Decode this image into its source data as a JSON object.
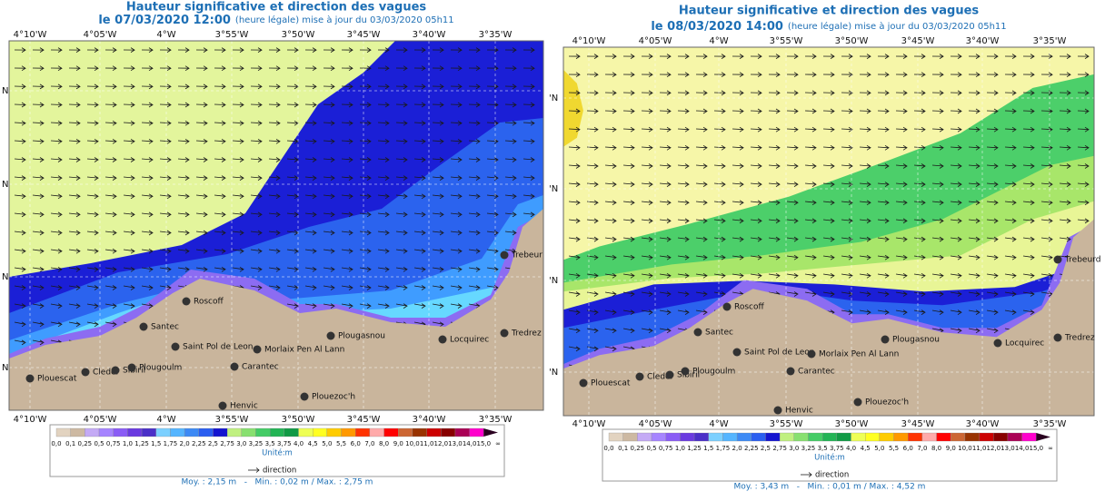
{
  "panels": [
    {
      "title": "Hauteur significative et direction des vagues",
      "date": "le 07/03/2020 12:00",
      "update": "(heure légale) mise à jour du 03/03/2020 05h11",
      "lon_labels": [
        "4°10'W",
        "4°05'W",
        "4°W",
        "3°55'W",
        "3°50'W",
        "3°45'W",
        "3°40'W",
        "3°35'W"
      ],
      "lat_labels": [
        "N",
        "N",
        "N",
        "N"
      ],
      "places": [
        "Roscoff",
        "Santec",
        "Saint Pol de Leon",
        "Morlaix Pen Al Lann",
        "Plougasnou",
        "Locquirec",
        "Trebeur",
        "Tredrez",
        "Plouescat",
        "Cleder",
        "Sibiril",
        "Plougoulm",
        "Carantec",
        "Plouezoc'h",
        "Henvic"
      ],
      "legend": {
        "labels": [
          "0,0",
          "0,1",
          "0,25",
          "0,5",
          "0,75",
          "1,0",
          "1,25",
          "1,5",
          "1,75",
          "2,0",
          "2,25",
          "2,5",
          "2,75",
          "3,0",
          "3,25",
          "3,5",
          "3,75",
          "4,0",
          "4,5",
          "5,0",
          "5,5",
          "6,0",
          "7,0",
          "8,0",
          "9,0",
          "10,0",
          "11,0",
          "12,0",
          "13,0",
          "14,0",
          "15,0",
          "∞"
        ],
        "unit": "Unité:m",
        "direction": "direction"
      },
      "stats": "Moy. : 2,15 m   -   Min. : 0,02 m / Max. : 2,75 m"
    },
    {
      "title": "Hauteur significative et direction des vagues",
      "date": "le 08/03/2020 14:00",
      "update": "(heure légale) mise à jour du 03/03/2020 05h11",
      "lon_labels": [
        "4°10'W",
        "4°05'W",
        "4°W",
        "3°55'W",
        "3°50'W",
        "3°45'W",
        "3°40'W",
        "3°35'W"
      ],
      "lat_labels": [
        "'N",
        "'N",
        "'N",
        "'N"
      ],
      "places": [
        "Roscoff",
        "Santec",
        "Saint Pol de Leon",
        "Morlaix Pen Al Lann",
        "Plougasnou",
        "Locquirec",
        "Trebeurd",
        "Tredrez",
        "Plouescat",
        "Cleder",
        "Sibiril",
        "Plougoulm",
        "Carantec",
        "Plouezoc'h",
        "Henvic"
      ],
      "legend": {
        "labels": [
          "0,0",
          "0,1",
          "0,25",
          "0,5",
          "0,75",
          "1,0",
          "1,25",
          "1,5",
          "1,75",
          "2,0",
          "2,25",
          "2,5",
          "2,75",
          "3,0",
          "3,25",
          "3,5",
          "3,75",
          "4,0",
          "4,5",
          "5,0",
          "5,5",
          "6,0",
          "7,0",
          "8,0",
          "9,0",
          "10,0",
          "11,0",
          "12,0",
          "13,0",
          "14,0",
          "15,0",
          "∞"
        ],
        "unit": "Unité:m",
        "direction": "direction"
      },
      "stats": "Moy. : 3,43 m   -   Min. : 0,01 m / Max. : 4,52 m"
    }
  ]
}
